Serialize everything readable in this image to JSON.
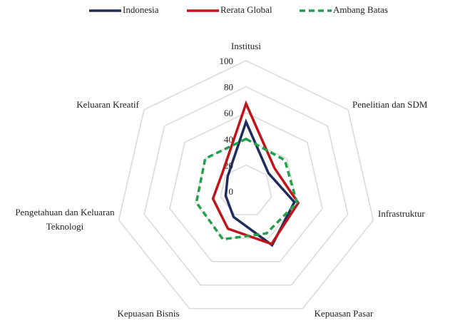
{
  "chart_data": {
    "type": "radar",
    "categories": [
      "Institusi",
      "Penelitian dan SDM",
      "Infrastruktur",
      "Kepuasan Pasar",
      "Kepuasan Bisnis",
      "Pengetahuan dan Keluaran Teknologi",
      "Keluaran Kreatif"
    ],
    "series": [
      {
        "name": "Indonesia",
        "color": "#1f2d5c",
        "dashed": false,
        "values": [
          53,
          22,
          38,
          46,
          22,
          16,
          18
        ]
      },
      {
        "name": "Rerata Global",
        "color": "#c0141b",
        "dashed": false,
        "values": [
          67,
          28,
          41,
          45,
          32,
          26,
          23
        ]
      },
      {
        "name": "Ambang Batas",
        "color": "#22a04b",
        "dashed": true,
        "values": [
          40,
          38,
          40,
          36,
          41,
          39,
          40
        ]
      }
    ],
    "ylim": [
      0,
      100
    ],
    "yticks": [
      0,
      20,
      40,
      60,
      80,
      100
    ],
    "grid": true,
    "legend": "top"
  }
}
